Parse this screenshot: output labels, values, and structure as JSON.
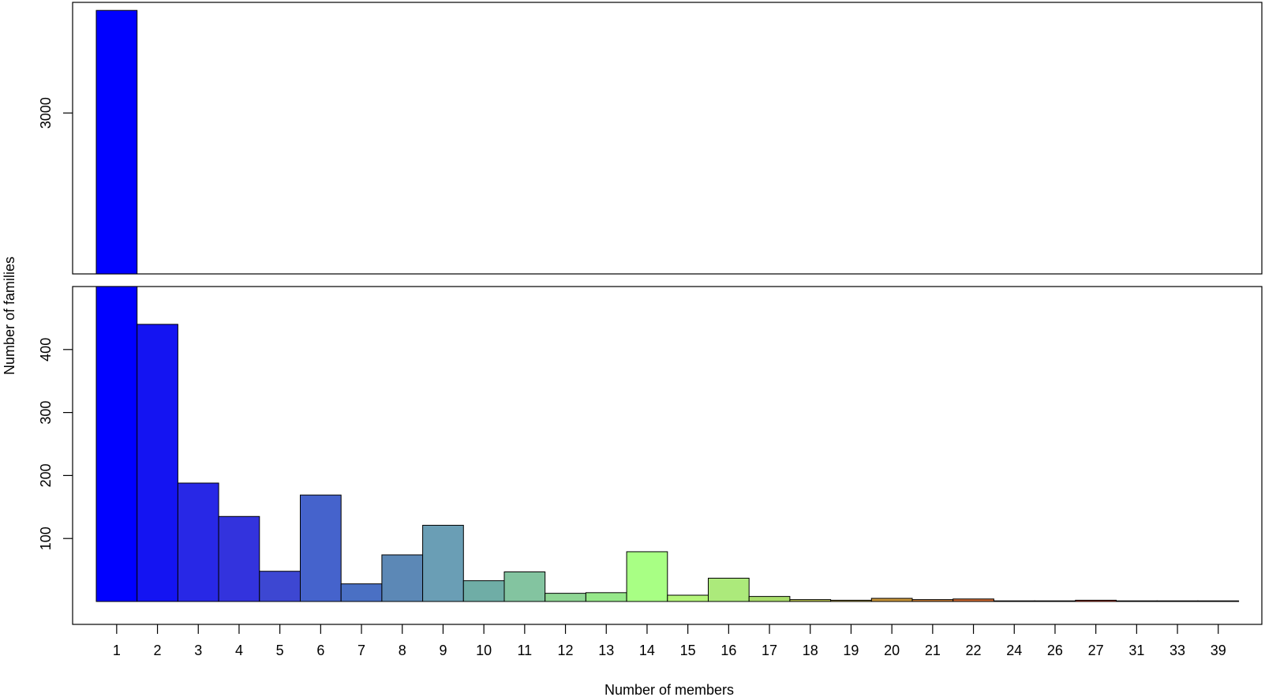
{
  "chart_data": {
    "type": "bar",
    "title": "",
    "xlabel": "Number of members",
    "ylabel": "Number of families",
    "axis_break": true,
    "upper_panel": {
      "ylim": [
        2200,
        3550
      ],
      "yticks": [
        "3000"
      ]
    },
    "lower_panel": {
      "ylim": [
        0,
        500
      ],
      "yticks": [
        "100",
        "200",
        "300",
        "400"
      ]
    },
    "categories": [
      "1",
      "2",
      "3",
      "4",
      "5",
      "6",
      "7",
      "8",
      "9",
      "10",
      "11",
      "12",
      "13",
      "14",
      "15",
      "16",
      "17",
      "18",
      "19",
      "20",
      "21",
      "22",
      "24",
      "26",
      "27",
      "31",
      "33",
      "39"
    ],
    "values": [
      3510,
      440,
      188,
      135,
      48,
      169,
      28,
      74,
      121,
      33,
      47,
      13,
      14,
      79,
      10,
      37,
      8,
      3,
      2,
      5,
      3,
      4,
      1,
      1,
      2,
      1,
      1,
      1
    ],
    "colors": [
      "#0000ff",
      "#1414f2",
      "#2828e6",
      "#3333dd",
      "#3d47d2",
      "#4563cc",
      "#4a70c4",
      "#5c88b6",
      "#6a9eb5",
      "#6fada6",
      "#83c4a0",
      "#8ed694",
      "#96e88a",
      "#a8ff84",
      "#b4f57a",
      "#acea7b",
      "#a8dd6a",
      "#b8c250",
      "#c0aa46",
      "#c8953a",
      "#cc8036",
      "#d06a32",
      "#d4552d",
      "#d84028",
      "#dc3a24",
      "#e03020",
      "#e0281c",
      "#e02018"
    ],
    "grid": false,
    "legend": "none"
  }
}
